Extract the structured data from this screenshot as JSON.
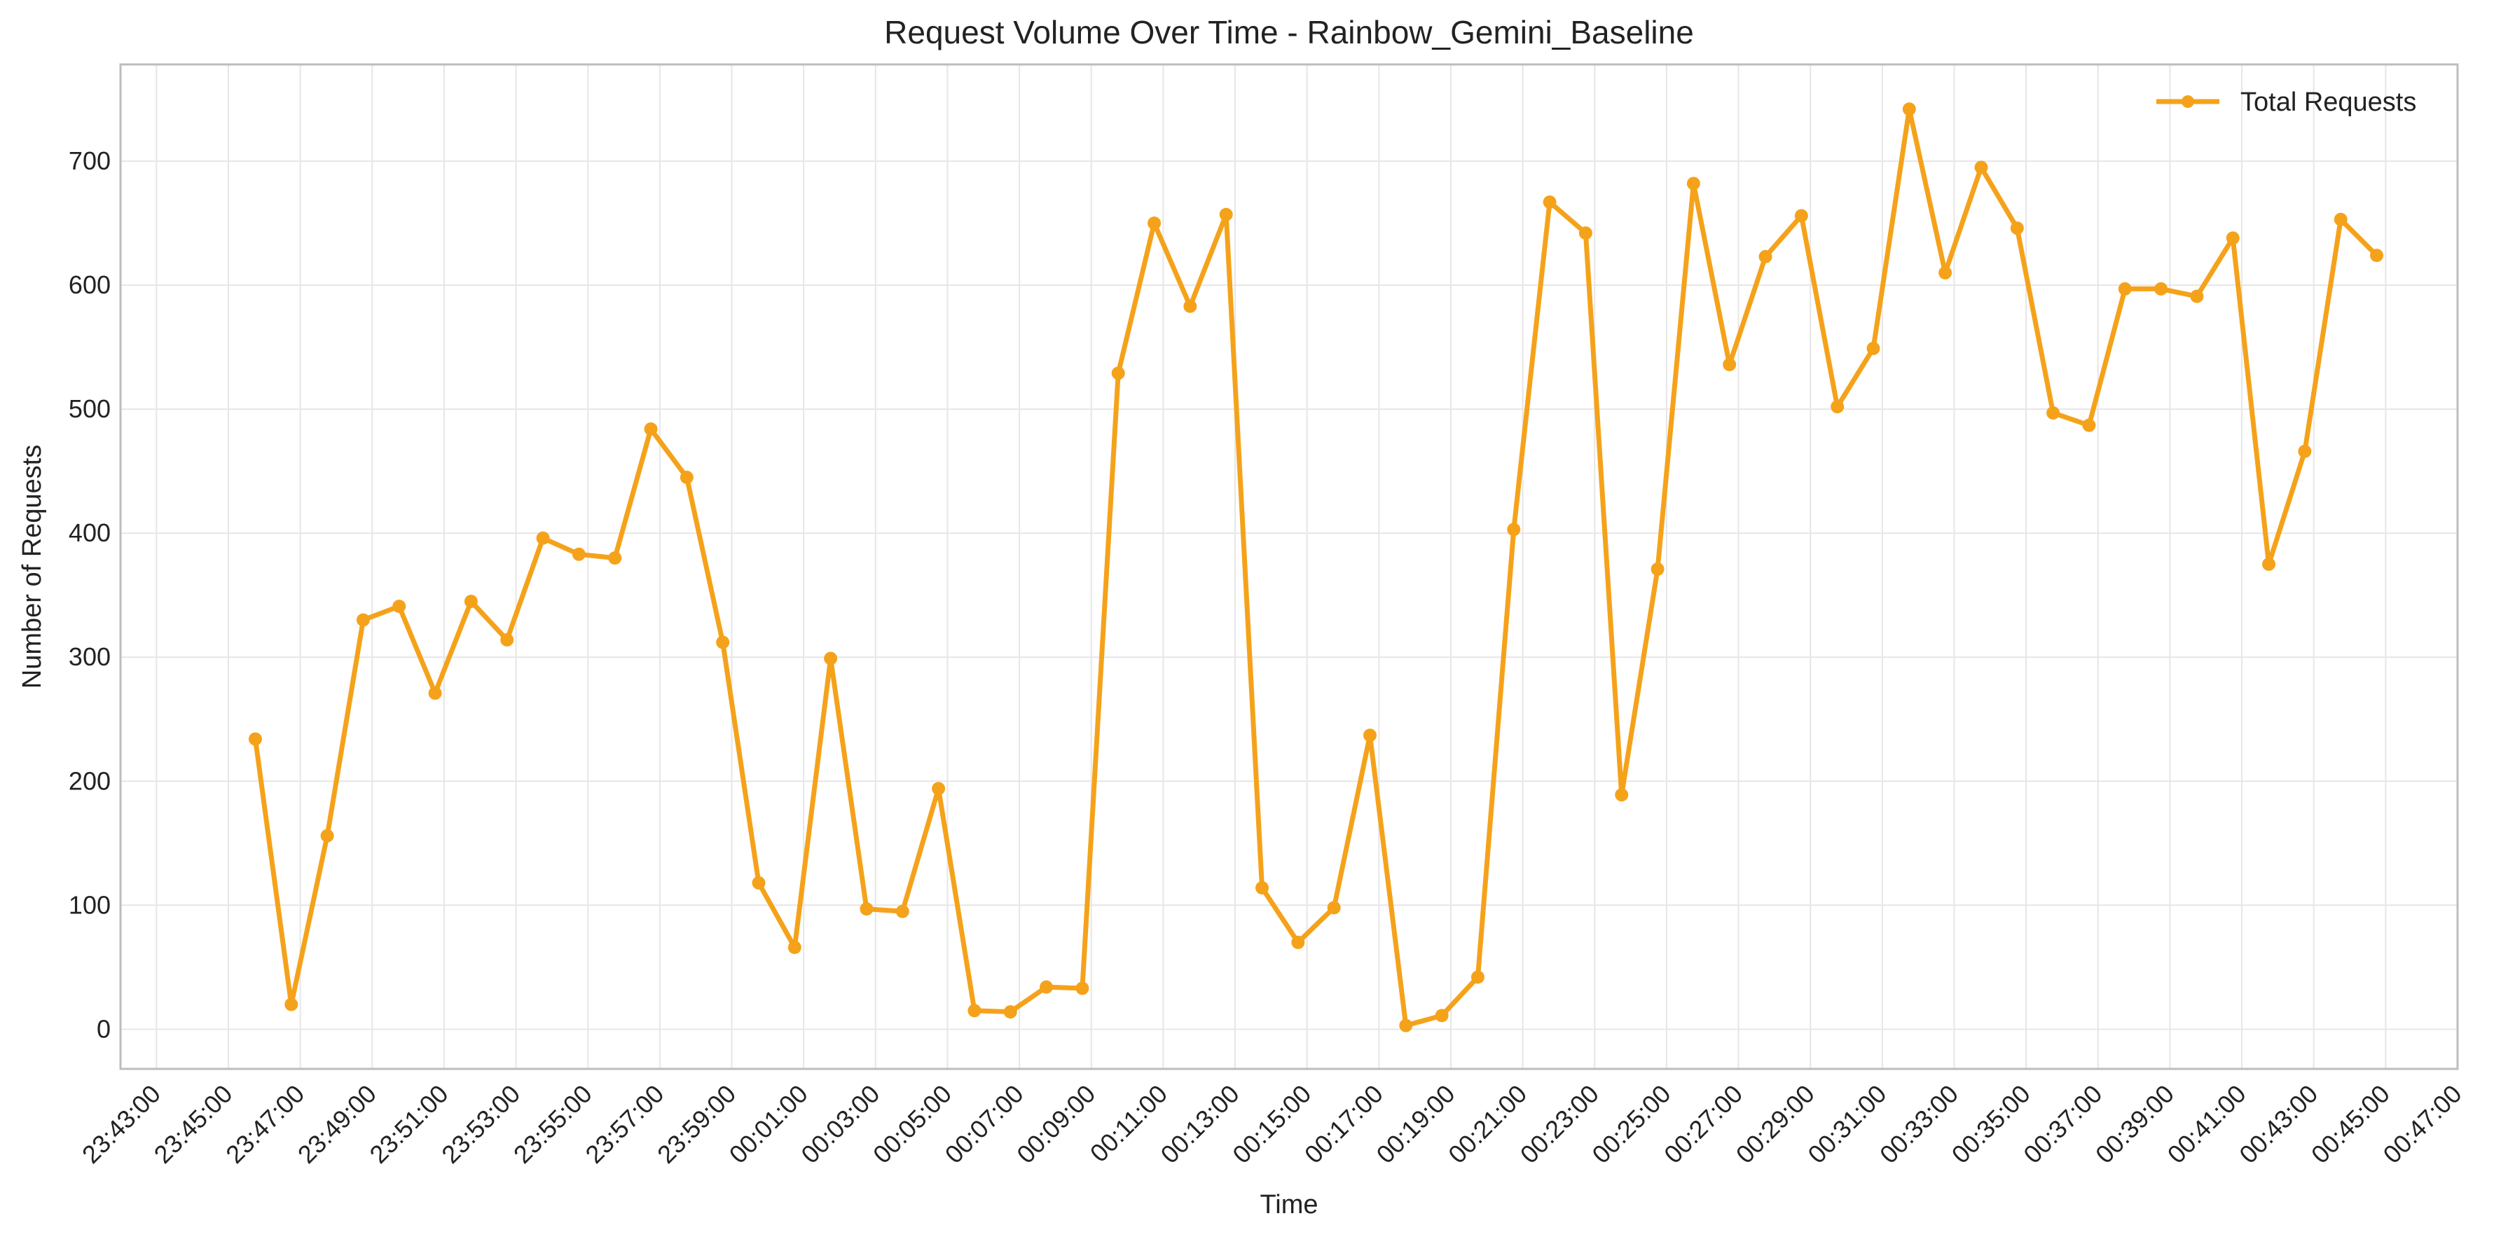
{
  "chart_data": {
    "type": "line",
    "title": "Request Volume Over Time - Rainbow_Gemini_Baseline",
    "xlabel": "Time",
    "ylabel": "Number of Requests",
    "x_tick_labels": [
      "23:43:00",
      "23:45:00",
      "23:47:00",
      "23:49:00",
      "23:51:00",
      "23:53:00",
      "23:55:00",
      "23:57:00",
      "23:59:00",
      "00:01:00",
      "00:03:00",
      "00:05:00",
      "00:07:00",
      "00:09:00",
      "00:11:00",
      "00:13:00",
      "00:15:00",
      "00:17:00",
      "00:19:00",
      "00:21:00",
      "00:23:00",
      "00:25:00",
      "00:27:00",
      "00:29:00",
      "00:31:00",
      "00:33:00",
      "00:35:00",
      "00:37:00",
      "00:39:00",
      "00:41:00",
      "00:43:00",
      "00:45:00",
      "00:47:00"
    ],
    "y_ticks": [
      0,
      100,
      200,
      300,
      400,
      500,
      600,
      700
    ],
    "ylim": [
      -32,
      778
    ],
    "xlim": [
      "23:42:00",
      "00:47:00"
    ],
    "grid": true,
    "legend_position": "top-right",
    "x": [
      "23:45:45",
      "23:46:45",
      "23:47:45",
      "23:48:45",
      "23:49:45",
      "23:50:45",
      "23:51:45",
      "23:52:45",
      "23:53:45",
      "23:54:45",
      "23:55:45",
      "23:56:45",
      "23:57:45",
      "23:58:45",
      "23:59:45",
      "00:00:45",
      "00:01:45",
      "00:02:45",
      "00:03:45",
      "00:04:45",
      "00:05:45",
      "00:06:45",
      "00:07:45",
      "00:08:45",
      "00:09:45",
      "00:10:45",
      "00:11:45",
      "00:12:45",
      "00:13:45",
      "00:14:45",
      "00:15:45",
      "00:16:45",
      "00:17:45",
      "00:18:45",
      "00:19:45",
      "00:20:45",
      "00:21:45",
      "00:22:45",
      "00:23:45",
      "00:24:45",
      "00:25:45",
      "00:26:45",
      "00:27:45",
      "00:28:45",
      "00:29:45",
      "00:30:45",
      "00:31:45",
      "00:32:45",
      "00:33:45",
      "00:34:45",
      "00:35:45",
      "00:36:45",
      "00:37:45",
      "00:38:45",
      "00:39:45",
      "00:40:45",
      "00:41:45",
      "00:42:45",
      "00:43:45",
      "00:44:45"
    ],
    "series": [
      {
        "name": "Total Requests",
        "color": "#f5a21b",
        "values": [
          234,
          20,
          156,
          330,
          341,
          271,
          345,
          314,
          396,
          383,
          380,
          484,
          445,
          312,
          118,
          66,
          299,
          97,
          95,
          194,
          15,
          14,
          34,
          33,
          529,
          650,
          583,
          657,
          114,
          70,
          98,
          237,
          3,
          11,
          42,
          403,
          667,
          642,
          189,
          371,
          682,
          536,
          623,
          656,
          502,
          549,
          742,
          610,
          695,
          646,
          497,
          487,
          597,
          597,
          591,
          638,
          375,
          466,
          653,
          624
        ]
      }
    ]
  }
}
